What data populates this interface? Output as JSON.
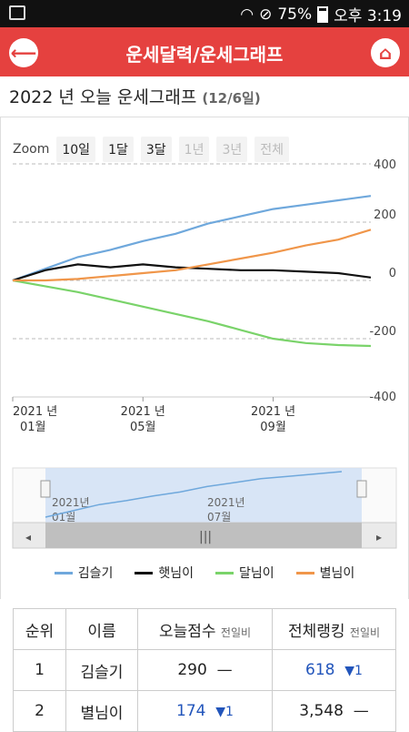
{
  "status_bar": {
    "battery": "75%",
    "time": "오후 3:19"
  },
  "header": {
    "title": "운세달력/운세그래프",
    "back_icon": "back-arrow-icon",
    "home_icon": "home-icon"
  },
  "page": {
    "heading": "2022 년 오늘 운세그래프",
    "date": "(12/6일)"
  },
  "zoom": {
    "label": "Zoom",
    "options": [
      "10일",
      "1달",
      "3달",
      "1년",
      "3년",
      "전체"
    ],
    "disabled": [
      "1년",
      "3년",
      "전체"
    ]
  },
  "chart_data": {
    "type": "line",
    "ylim": [
      -400,
      400
    ],
    "y_ticks": [
      "400",
      "200",
      "0",
      "-200",
      "-400"
    ],
    "x_ticks": [
      {
        "line1": "2021 년",
        "line2": "01월"
      },
      {
        "line1": "2021 년",
        "line2": "05월"
      },
      {
        "line1": "2021 년",
        "line2": "09월"
      }
    ],
    "x": [
      "2021-01",
      "2021-02",
      "2021-03",
      "2021-04",
      "2021-05",
      "2021-06",
      "2021-07",
      "2021-08",
      "2021-09",
      "2021-10",
      "2021-11",
      "2021-12"
    ],
    "series": [
      {
        "name": "김슬기",
        "color": "#6fa8dc",
        "values": [
          0,
          40,
          80,
          105,
          135,
          160,
          195,
          220,
          245,
          260,
          275,
          290
        ]
      },
      {
        "name": "햇님이",
        "color": "#111111",
        "values": [
          0,
          35,
          55,
          45,
          55,
          45,
          40,
          35,
          35,
          30,
          25,
          10
        ]
      },
      {
        "name": "달님이",
        "color": "#7ad36a",
        "values": [
          0,
          -20,
          -40,
          -65,
          -90,
          -115,
          -140,
          -170,
          -200,
          -215,
          -222,
          -225
        ]
      },
      {
        "name": "별님이",
        "color": "#f0964a",
        "values": [
          0,
          0,
          5,
          15,
          25,
          35,
          55,
          75,
          95,
          120,
          140,
          174
        ]
      }
    ],
    "navigator": {
      "x_ticks": [
        {
          "line1": "2021년",
          "line2": "01월"
        },
        {
          "line1": "2021년",
          "line2": "07월"
        }
      ],
      "selection": [
        0.0,
        1.0
      ]
    }
  },
  "legend": [
    "김슬기",
    "햇님이",
    "달님이",
    "별님이"
  ],
  "table": {
    "headers": {
      "rank": "순위",
      "name": "이름",
      "today_score": "오늘점수",
      "today_sub": "전일비",
      "overall_rank": "전체랭킹",
      "overall_sub": "전일비"
    },
    "rows": [
      {
        "rank": "1",
        "name": "김슬기",
        "score": "290",
        "score_change": "—",
        "overall": "618",
        "overall_change": "▼1"
      },
      {
        "rank": "2",
        "name": "별님이",
        "score": "174",
        "score_change": "▼1",
        "overall": "3,548",
        "overall_change": "—"
      }
    ]
  }
}
